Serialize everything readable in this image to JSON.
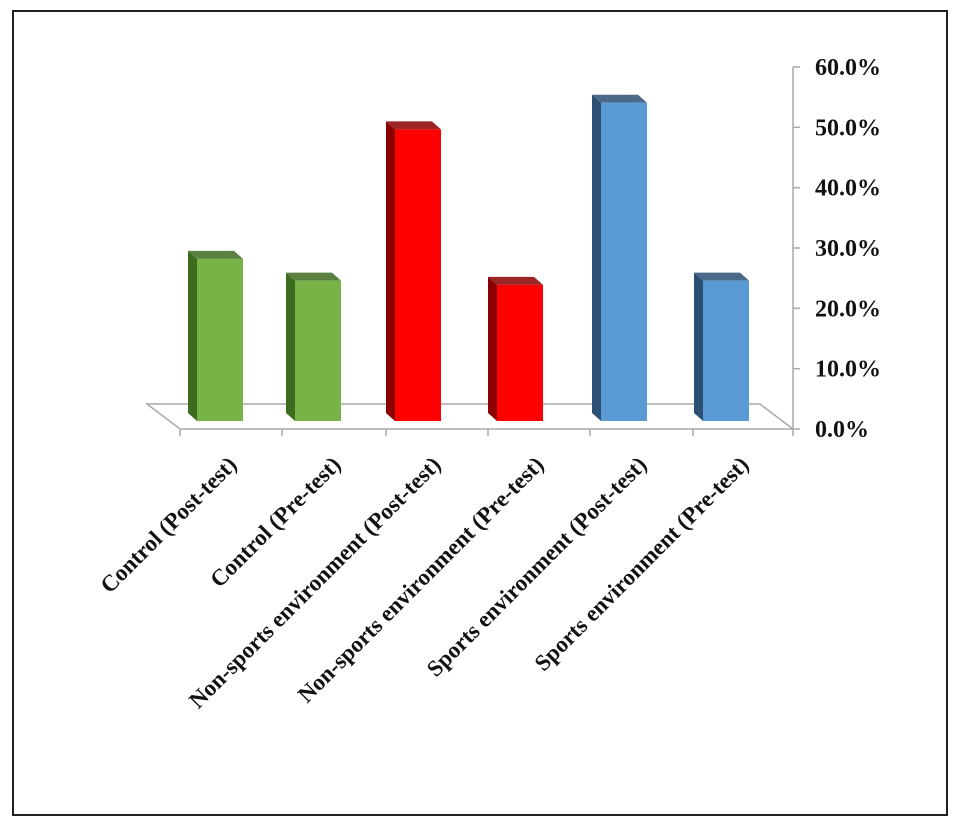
{
  "chart_data": {
    "type": "bar",
    "categories": [
      "Control (Post-test)",
      "Control (Pre-test)",
      "Non-sports environment (Post-test)",
      "Non-sports environment (Pre-test)",
      "Sports environment (Post-test)",
      "Sports environment (Pre-test)"
    ],
    "values": [
      0.268,
      0.232,
      0.482,
      0.225,
      0.526,
      0.232
    ],
    "colors": [
      "#77b347",
      "#77b347",
      "#ff0000",
      "#ff0000",
      "#5b9bd5",
      "#5b9bd5"
    ],
    "shade_colors": [
      "#3d6b20",
      "#3d6b20",
      "#8b0000",
      "#8b0000",
      "#2c4f74",
      "#2c4f74"
    ],
    "y_ticks": [
      "0.0%",
      "10.0%",
      "20.0%",
      "30.0%",
      "40.0%",
      "50.0%",
      "60.0%"
    ],
    "ylim": [
      0,
      0.6
    ],
    "title": "",
    "xlabel": "",
    "ylabel": "",
    "axis_position": "right",
    "style": "3d-column"
  }
}
